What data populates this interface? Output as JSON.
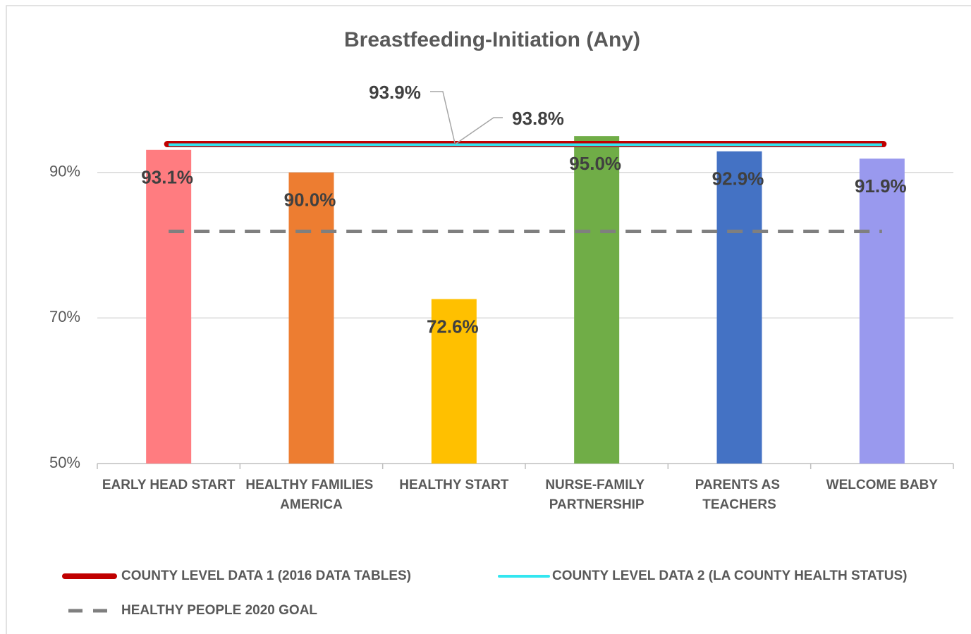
{
  "chart_data": {
    "type": "bar",
    "title": "Breastfeeding-Initiation (Any)",
    "categories": [
      "EARLY HEAD START",
      "HEALTHY FAMILIES AMERICA",
      "HEALTHY START",
      "NURSE-FAMILY PARTNERSHIP",
      "PARENTS AS TEACHERS",
      "WELCOME BABY"
    ],
    "values": [
      93.1,
      90.0,
      72.6,
      95.0,
      92.9,
      91.9
    ],
    "value_labels": [
      "93.1%",
      "90.0%",
      "72.6%",
      "95.0%",
      "92.9%",
      "91.9%"
    ],
    "colors": [
      "#ff7c80",
      "#ed7d31",
      "#ffc000",
      "#70ad47",
      "#4472c4",
      "#9999ee"
    ],
    "ylim": [
      50,
      110
    ],
    "yticks": [
      {
        "value": 50,
        "label": "50%"
      },
      {
        "value": 70,
        "label": "70%"
      },
      {
        "value": 90,
        "label": "90%"
      }
    ],
    "grid": true,
    "reference_lines": [
      {
        "name": "COUNTY LEVEL DATA 1 (2016 DATA TABLES)",
        "color": "#c00000",
        "style": "solid-thick",
        "value": 93.9,
        "value_label": "93.9%"
      },
      {
        "name": "COUNTY LEVEL DATA 2 (LA COUNTY HEALTH STATUS)",
        "color": "#33e6f0",
        "style": "solid",
        "value": 93.8,
        "value_label": "93.8%"
      },
      {
        "name": "HEALTHY PEOPLE 2020 GOAL",
        "color": "#7f7f7f",
        "style": "dashed",
        "value": 81.9
      }
    ],
    "legend": "bottom"
  }
}
